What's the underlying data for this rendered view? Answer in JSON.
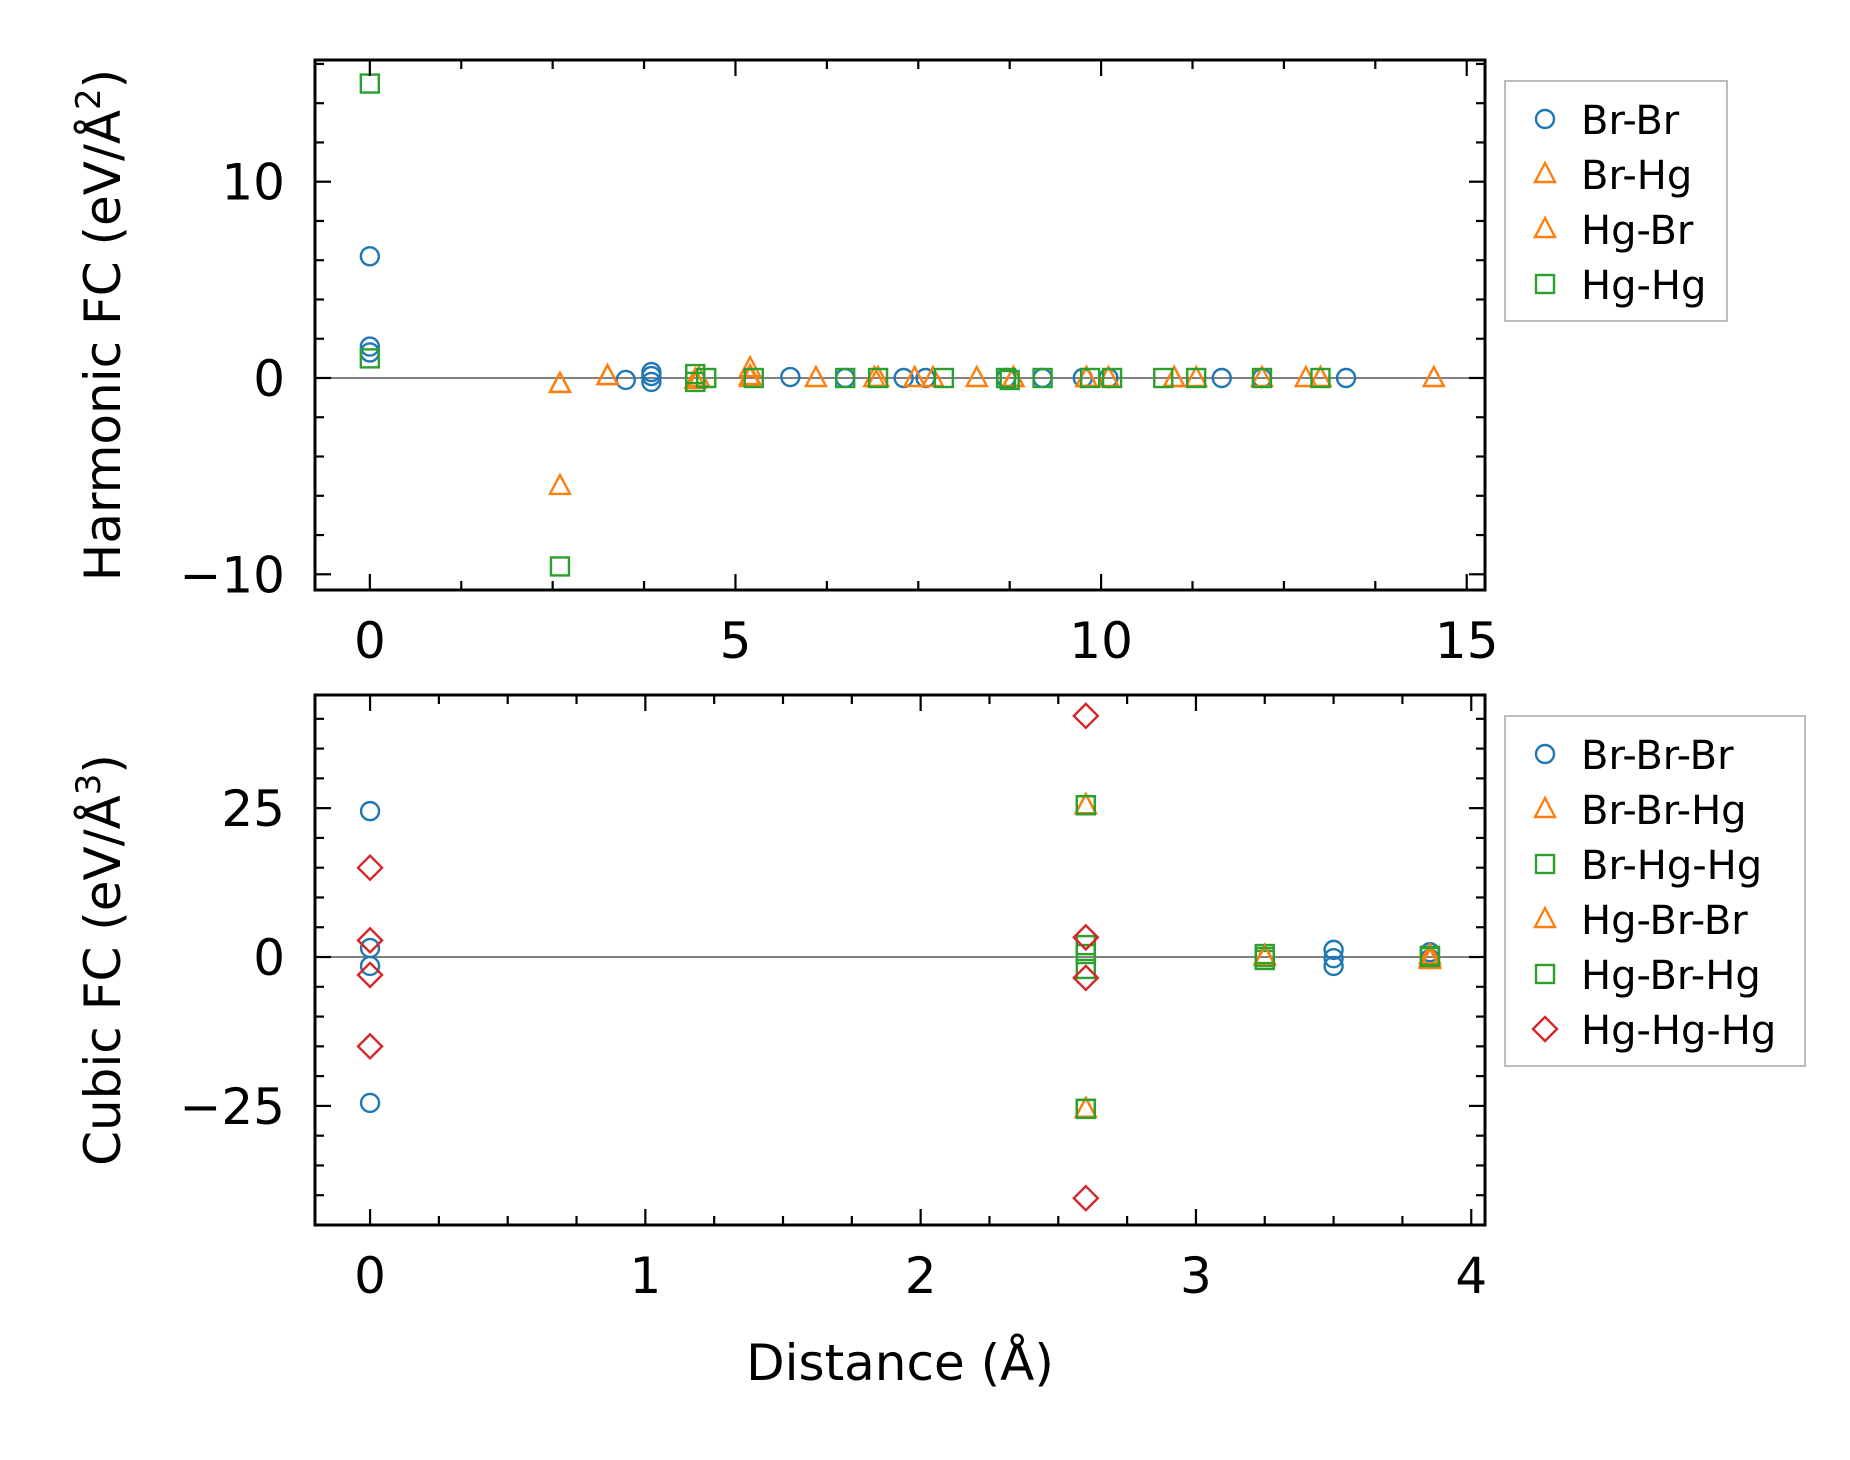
{
  "chart_data": [
    {
      "type": "scatter",
      "ylabel_main": "Harmonic FC (eV/Å",
      "ylabel_sup": "2",
      "ylabel_end": ")",
      "xlim": [
        -0.75,
        15.25
      ],
      "ylim": [
        -10.8,
        16.2
      ],
      "xticks": [
        0,
        5,
        10,
        15
      ],
      "xtick_labels": [
        "0",
        "5",
        "10",
        "15"
      ],
      "yticks": [
        -10,
        0,
        10
      ],
      "ytick_labels": [
        "−10",
        "0",
        "10"
      ],
      "legend": [
        "Br-Br",
        "Br-Hg",
        "Hg-Br",
        "Hg-Hg"
      ],
      "series": [
        {
          "name": "Br-Br",
          "marker": "circle",
          "color": "#1f77b4",
          "x": [
            0,
            0,
            0,
            3.5,
            3.85,
            3.85,
            3.85,
            5.75,
            6.5,
            7.3,
            7.6,
            8.7,
            9.2,
            9.75,
            10.1,
            11.65,
            12.2,
            13.35
          ],
          "y": [
            6.2,
            1.6,
            1.3,
            -0.1,
            0.3,
            0.1,
            -0.2,
            0.05,
            0.0,
            0.0,
            0.0,
            0.0,
            0.0,
            0.0,
            0.0,
            0.0,
            0.0,
            0.0
          ]
        },
        {
          "name": "Br-Hg",
          "marker": "triangle",
          "color": "#ff7f0e",
          "x": [
            2.6,
            2.6,
            3.25,
            4.45,
            5.2,
            5.2,
            6.1,
            6.95,
            7.45,
            7.7,
            8.3,
            8.8,
            9.8,
            10.1,
            11.0,
            11.3,
            12.2,
            12.8,
            13.0,
            14.55
          ],
          "y": [
            -5.5,
            -0.3,
            0.1,
            -0.1,
            0.5,
            0.0,
            0.0,
            0.0,
            0.0,
            0.0,
            0.0,
            0.0,
            0.0,
            0.0,
            0.0,
            0.0,
            0.0,
            0.0,
            0.0,
            0.0
          ]
        },
        {
          "name": "Hg-Br",
          "marker": "triangle",
          "color": "#ff7f0e",
          "x": [
            2.6,
            3.25,
            4.5,
            5.2,
            6.9,
            8.8,
            9.8,
            11.0,
            13.0
          ],
          "y": [
            -0.3,
            0.1,
            0.0,
            0.1,
            0.0,
            0.0,
            0.0,
            0.0,
            0.0
          ]
        },
        {
          "name": "Hg-Hg",
          "marker": "square",
          "color": "#2ca02c",
          "x": [
            0,
            0,
            2.6,
            4.45,
            4.45,
            4.6,
            5.25,
            6.5,
            6.95,
            7.85,
            8.7,
            8.75,
            9.2,
            9.85,
            10.15,
            10.85,
            11.3,
            12.2,
            13.0
          ],
          "y": [
            15.0,
            1.0,
            -9.6,
            0.2,
            -0.2,
            0.0,
            0.0,
            0.0,
            0.0,
            0.0,
            0.0,
            -0.1,
            0.0,
            0.0,
            0.0,
            0.0,
            0.0,
            0.0,
            0.0
          ]
        }
      ]
    },
    {
      "type": "scatter",
      "ylabel_main": "Cubic FC (eV/Å",
      "ylabel_sup": "3",
      "ylabel_end": ")",
      "xlabel": "Distance (Å)",
      "xlim": [
        -0.2,
        4.05
      ],
      "ylim": [
        -45,
        44
      ],
      "xticks": [
        0,
        1,
        2,
        3,
        4
      ],
      "xtick_labels": [
        "0",
        "1",
        "2",
        "3",
        "4"
      ],
      "yticks": [
        -25,
        0,
        25
      ],
      "ytick_labels": [
        "−25",
        "0",
        "25"
      ],
      "legend": [
        "Br-Br-Br",
        "Br-Br-Hg",
        "Br-Hg-Hg",
        "Hg-Br-Br",
        "Hg-Br-Hg",
        "Hg-Hg-Hg"
      ],
      "series": [
        {
          "name": "Br-Br-Br",
          "marker": "circle",
          "color": "#1f77b4",
          "x": [
            0,
            0,
            0,
            0,
            3.5,
            3.5,
            3.5,
            3.85,
            3.85
          ],
          "y": [
            24.5,
            1.5,
            -1.5,
            -24.5,
            1.2,
            -0.2,
            -1.5,
            0.8,
            -0.3
          ]
        },
        {
          "name": "Br-Br-Hg",
          "marker": "triangle",
          "color": "#ff7f0e",
          "x": [
            2.6,
            2.6,
            3.25,
            3.85,
            3.85
          ],
          "y": [
            25.5,
            -25.5,
            0.2,
            0.3,
            -0.5
          ]
        },
        {
          "name": "Br-Hg-Hg",
          "marker": "square",
          "color": "#2ca02c",
          "x": [
            2.6,
            2.6,
            2.6,
            2.6,
            3.25,
            3.25,
            3.85
          ],
          "y": [
            25.5,
            -25.5,
            2.0,
            -2.0,
            0.5,
            -0.5,
            0.2
          ]
        },
        {
          "name": "Hg-Br-Br",
          "marker": "triangle",
          "color": "#ff7f0e",
          "x": [
            2.6,
            2.6,
            3.25,
            3.85
          ],
          "y": [
            25.5,
            -25.5,
            0.0,
            -0.2
          ]
        },
        {
          "name": "Hg-Br-Hg",
          "marker": "square",
          "color": "#2ca02c",
          "x": [
            2.6,
            2.6,
            2.6,
            3.25,
            3.85
          ],
          "y": [
            25.5,
            -25.5,
            0.5,
            0.0,
            0.0
          ]
        },
        {
          "name": "Hg-Hg-Hg",
          "marker": "diamond",
          "color": "#d62728",
          "x": [
            0,
            0,
            0,
            0,
            2.6,
            2.6,
            2.6,
            2.6
          ],
          "y": [
            15.0,
            2.8,
            -3.0,
            -15.0,
            40.5,
            3.3,
            -3.5,
            -40.5
          ]
        }
      ]
    }
  ]
}
